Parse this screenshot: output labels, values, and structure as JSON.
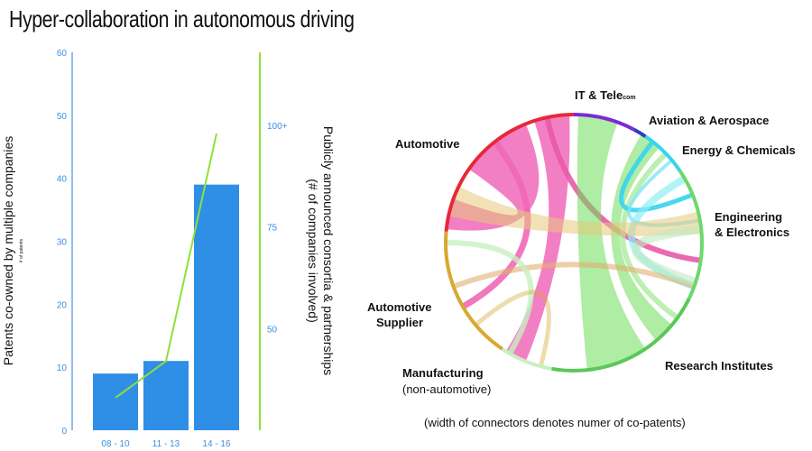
{
  "title": "Hyper-collaboration in autonomous driving",
  "footnote": "(width of connectors denotes numer of co-patents)",
  "colors": {
    "bar": "#2f8fe6",
    "line": "#8ee03a",
    "axis_text": "#3a8fe0",
    "left_axis": "#6aa8e8"
  },
  "chart_data": [
    {
      "type": "bar",
      "categories": [
        "08 - 10",
        "11 - 13",
        "14 - 16"
      ],
      "series": [
        {
          "values": [
            9,
            11,
            39
          ]
        },
        {
          "values": [
            33,
            42,
            98
          ]
        }
      ],
      "ylabel": "Patents co-owned by multiple companies",
      "ylabel_small": "# of patents",
      "y_ticks": [
        "0",
        "10",
        "20",
        "30",
        "40",
        "50",
        "60"
      ],
      "ylim": [
        0,
        60
      ],
      "y2label_line1": "Publicly announced consortia & partnerships",
      "y2label_line2": "(# of companies involved)",
      "y2_ticks": [
        "50",
        "75",
        "100+"
      ],
      "y2lim": [
        25,
        118
      ]
    },
    {
      "type": "chord",
      "groups": [
        {
          "name": "IT & Tele",
          "suffix": "com",
          "color": "#7b2ad6"
        },
        {
          "name": "Aviation & Aerospace",
          "color": "#2a3fb8"
        },
        {
          "name": "Energy & Chemicals",
          "color": "#36d4ef"
        },
        {
          "name": "Engineering",
          "name2": "& Electronics",
          "color": "#6cd96a"
        },
        {
          "name": "Research Institutes",
          "color": "#5ac85a"
        },
        {
          "name": "Manufacturing",
          "sub": "(non-automotive)",
          "color": "#c8efc0"
        },
        {
          "name": "Automotive",
          "name2": "Supplier",
          "color": "#d8a830"
        },
        {
          "name": "Automotive",
          "color": "#e8283a"
        }
      ]
    }
  ]
}
